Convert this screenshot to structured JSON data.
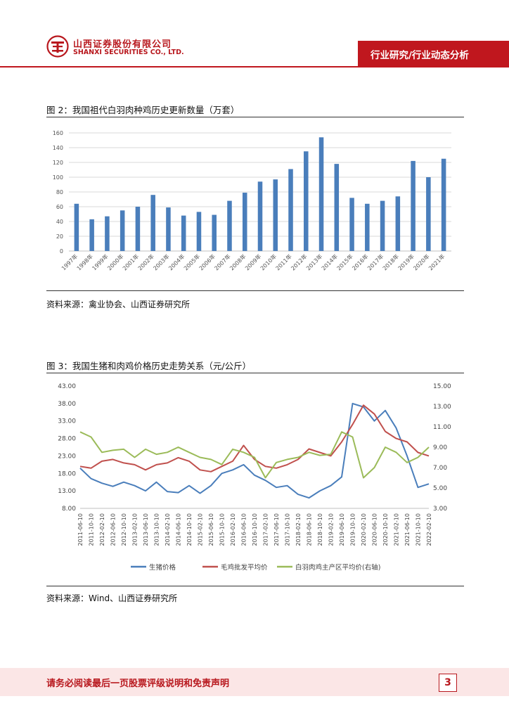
{
  "header": {
    "company_cn": "山西证券股份有限公司",
    "company_en": "SHANXI SECURITIES CO., LTD.",
    "section": "行业研究/行业动态分析",
    "brand_color": "#c0171e"
  },
  "figures": [
    {
      "title": "图 2：我国祖代白羽肉种鸡历史更新数量（万套）",
      "source": "资料来源：禽业协会、山西证券研究所"
    },
    {
      "title": "图 3：我国生猪和肉鸡价格历史走势关系（元/公斤）",
      "source": "资料来源：Wind、山西证券研究所"
    }
  ],
  "chart_data": [
    {
      "type": "bar",
      "title": "我国祖代白羽肉种鸡历史更新数量（万套）",
      "categories": [
        "1997年",
        "1998年",
        "1999年",
        "2000年",
        "2001年",
        "2002年",
        "2003年",
        "2004年",
        "2005年",
        "2006年",
        "2007年",
        "2008年",
        "2009年",
        "2010年",
        "2011年",
        "2012年",
        "2013年",
        "2014年",
        "2015年",
        "2016年",
        "2017年",
        "2018年",
        "2019年",
        "2020年",
        "2021年"
      ],
      "values": [
        64,
        43,
        47,
        55,
        60,
        76,
        59,
        48,
        53,
        49,
        68,
        79,
        94,
        97,
        111,
        135,
        154,
        118,
        72,
        64,
        68,
        74,
        122,
        100,
        125
      ],
      "ylim": [
        0,
        160
      ],
      "yticks": [
        "0",
        "20",
        "40",
        "60",
        "80",
        "100",
        "120",
        "140",
        "160"
      ],
      "color": "#4a7ebb",
      "grid": true
    },
    {
      "type": "line",
      "title": "我国生猪和肉鸡价格历史走势关系（元/公斤）",
      "x_labels": [
        "2011-06-10",
        "2011-10-10",
        "2012-02-10",
        "2012-06-10",
        "2012-10-10",
        "2013-02-10",
        "2013-06-10",
        "2013-10-10",
        "2014-02-10",
        "2014-06-10",
        "2014-10-10",
        "2015-02-10",
        "2015-06-10",
        "2015-10-10",
        "2016-02-10",
        "2016-06-10",
        "2016-10-10",
        "2017-02-10",
        "2017-06-10",
        "2017-10-10",
        "2018-02-10",
        "2018-06-10",
        "2018-10-10",
        "2019-02-10",
        "2019-06-10",
        "2019-10-10",
        "2020-02-10",
        "2020-06-10",
        "2020-10-10",
        "2021-02-10",
        "2021-06-10",
        "2021-10-10",
        "2022-02-10"
      ],
      "y_left": {
        "ticks": [
          "8.00",
          "13.00",
          "18.00",
          "23.00",
          "28.00",
          "33.00",
          "38.00",
          "43.00"
        ],
        "range": [
          8,
          43
        ]
      },
      "y_right": {
        "ticks": [
          "3.00",
          "5.00",
          "7.00",
          "9.00",
          "11.00",
          "13.00",
          "15.00"
        ],
        "range": [
          3,
          15
        ]
      },
      "series": [
        {
          "name": "生猪价格",
          "axis": "left",
          "color": "#4a7ebb",
          "values": [
            19.5,
            16.5,
            15.2,
            14.3,
            15.5,
            14.5,
            13.0,
            15.5,
            12.8,
            12.5,
            14.5,
            12.3,
            14.5,
            18.0,
            19.0,
            20.5,
            17.5,
            16.0,
            14.0,
            14.5,
            12.0,
            11.0,
            13.0,
            14.5,
            17.0,
            38.0,
            37.0,
            33.0,
            36.0,
            31.0,
            23.0,
            14.0,
            15.0
          ]
        },
        {
          "name": "毛鸡批发平均价",
          "axis": "left",
          "color": "#c0504d",
          "values": [
            20.0,
            19.5,
            21.5,
            22.0,
            21.0,
            20.5,
            19.0,
            20.5,
            21.0,
            22.5,
            21.5,
            19.0,
            18.5,
            20.0,
            21.5,
            26.0,
            22.0,
            20.0,
            19.5,
            20.5,
            22.0,
            25.0,
            24.0,
            23.0,
            27.0,
            32.0,
            37.5,
            35.0,
            30.0,
            28.0,
            27.0,
            24.0,
            23.0
          ]
        },
        {
          "name": "白羽肉鸡主产区平均价(右轴)",
          "axis": "right",
          "color": "#9bbb59",
          "values": [
            10.5,
            10.0,
            8.5,
            8.7,
            8.8,
            8.0,
            8.8,
            8.3,
            8.5,
            9.0,
            8.5,
            8.0,
            7.8,
            7.3,
            8.8,
            8.5,
            8.0,
            6.0,
            7.5,
            7.8,
            8.0,
            8.5,
            8.2,
            8.3,
            10.5,
            10.0,
            6.0,
            7.0,
            9.0,
            8.5,
            7.5,
            8.0,
            9.0
          ]
        }
      ]
    }
  ],
  "footer": {
    "disclaimer": "请务必阅读最后一页股票评级说明和免责声明",
    "page": "3"
  }
}
